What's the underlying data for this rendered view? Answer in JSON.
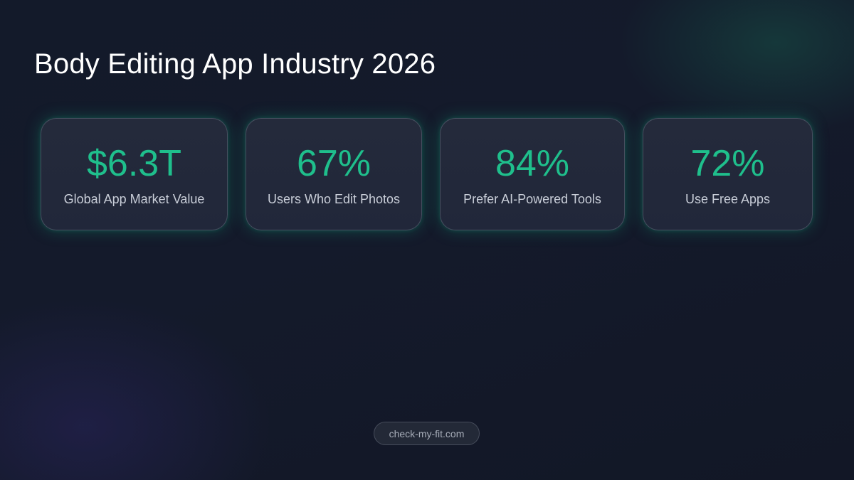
{
  "header": {
    "title": "Body Editing App Industry 2026"
  },
  "stats": [
    {
      "value": "$6.3T",
      "label": "Global App Market Value"
    },
    {
      "value": "67%",
      "label": "Users Who Edit Photos"
    },
    {
      "value": "84%",
      "label": "Prefer AI-Powered Tools"
    },
    {
      "value": "72%",
      "label": "Use Free Apps"
    }
  ],
  "footer": {
    "site": "check-my-fit.com"
  },
  "colors": {
    "accent": "#1fbf8c",
    "background": "#131a2a",
    "card": "#232939",
    "title": "#ffffff",
    "label": "#c9ced8"
  }
}
